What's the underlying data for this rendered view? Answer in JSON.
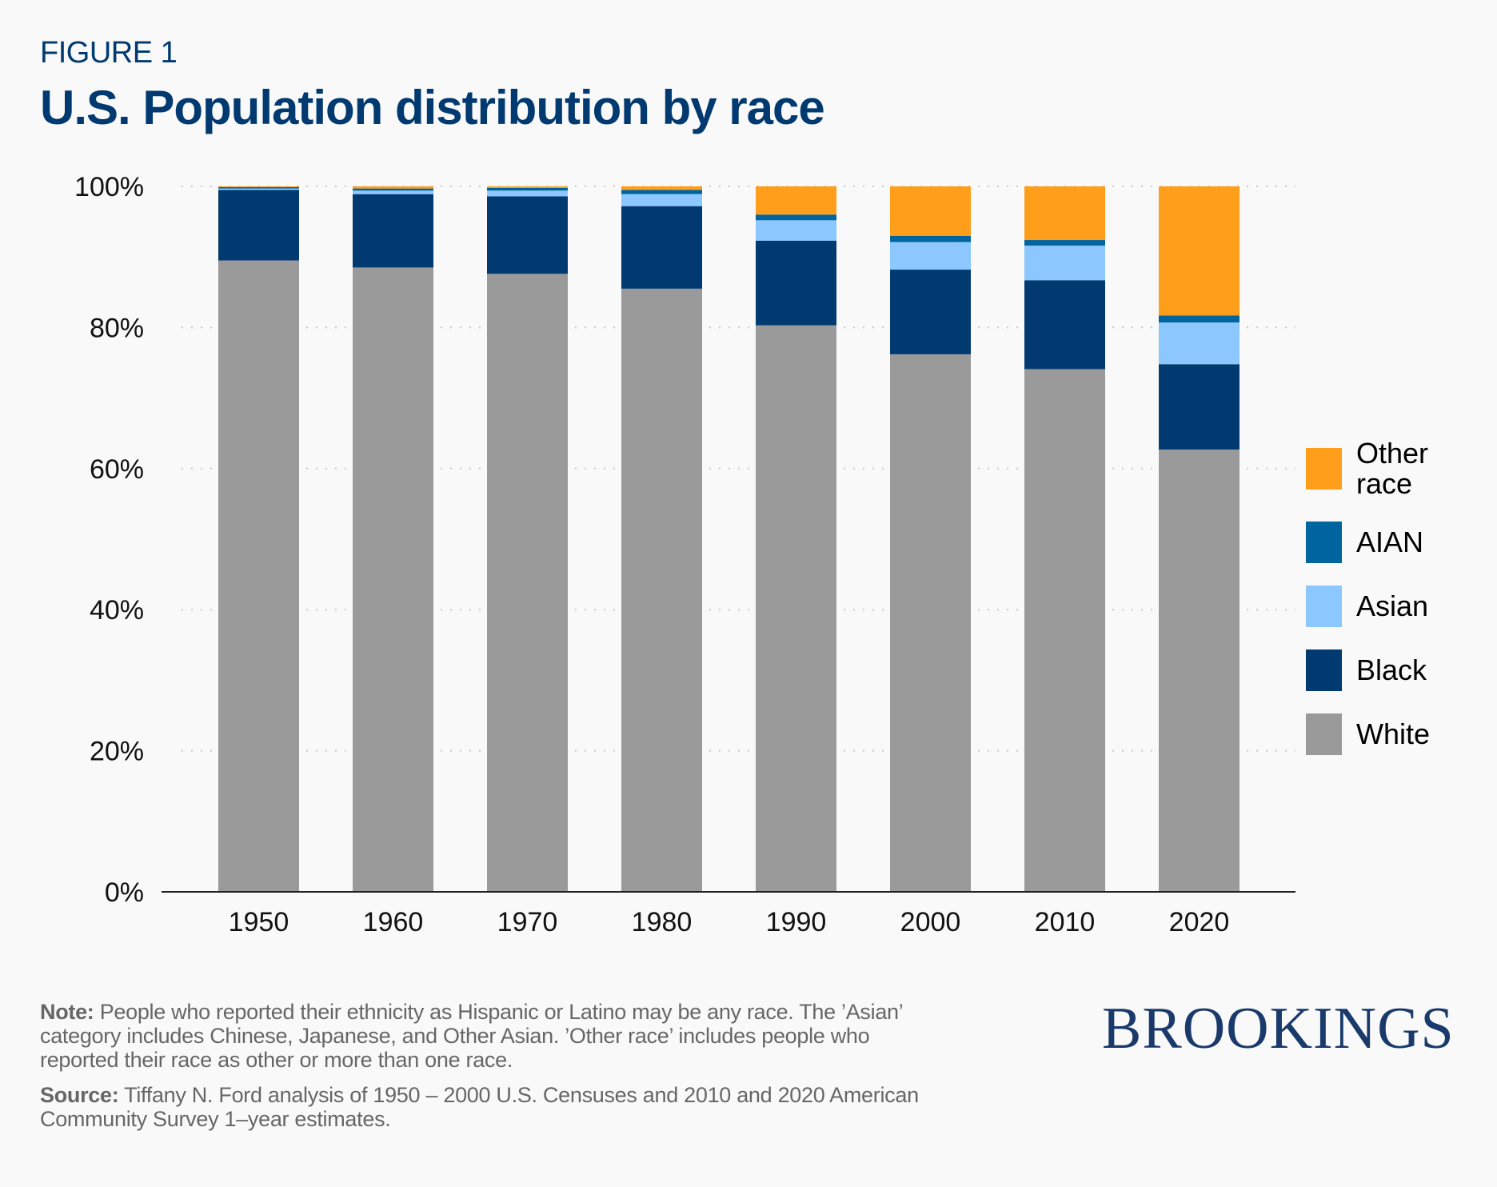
{
  "header": {
    "figure_label": "FIGURE 1",
    "title": "U.S. Population distribution by race"
  },
  "chart_data": {
    "type": "bar",
    "stacked": true,
    "title": "U.S. Population distribution by race",
    "xlabel": "",
    "ylabel": "",
    "categories": [
      "1950",
      "1960",
      "1970",
      "1980",
      "1990",
      "2000",
      "2010",
      "2020"
    ],
    "ylim": [
      0,
      100
    ],
    "yticks": [
      0,
      20,
      40,
      60,
      80,
      100
    ],
    "ytick_labels": [
      "0%",
      "20%",
      "40%",
      "60%",
      "80%",
      "100%"
    ],
    "grid": true,
    "legend_position": "right",
    "series": [
      {
        "name": "White",
        "color": "#9a9a9a",
        "values": [
          89.5,
          88.5,
          87.6,
          85.5,
          80.3,
          76.2,
          74.1,
          62.7
        ]
      },
      {
        "name": "Black",
        "color": "#003a70",
        "values": [
          10.0,
          10.4,
          11.0,
          11.7,
          12.0,
          12.0,
          12.6,
          12.1
        ]
      },
      {
        "name": "Asian",
        "color": "#8cc8ff",
        "values": [
          0.2,
          0.5,
          0.8,
          1.7,
          2.9,
          3.9,
          4.9,
          5.9
        ]
      },
      {
        "name": "AIAN",
        "color": "#00649f",
        "values": [
          0.2,
          0.3,
          0.4,
          0.6,
          0.8,
          0.9,
          0.8,
          1.0
        ]
      },
      {
        "name": "Other race",
        "color": "#ff9e1b",
        "values": [
          0.1,
          0.3,
          0.2,
          0.5,
          4.0,
          7.0,
          7.6,
          18.3
        ]
      }
    ]
  },
  "legend": [
    {
      "label": "Other race",
      "color": "#ff9e1b"
    },
    {
      "label": "AIAN",
      "color": "#00649f"
    },
    {
      "label": "Asian",
      "color": "#8cc8ff"
    },
    {
      "label": "Black",
      "color": "#003a70"
    },
    {
      "label": "White",
      "color": "#9a9a9a"
    }
  ],
  "footer": {
    "note_label": "Note:",
    "note_text": " People who reported their ethnicity as Hispanic or Latino may be any race. The ’Asian’ category includes Chinese, Japanese, and Other Asian. ’Other race’ includes people who reported their race as other or more than one race.",
    "source_label": "Source:",
    "source_text": " Tiffany N. Ford analysis of 1950 – 2000 U.S. Censuses and 2010 and 2020 American Community Survey 1–year estimates.",
    "brand": "BROOKINGS"
  }
}
